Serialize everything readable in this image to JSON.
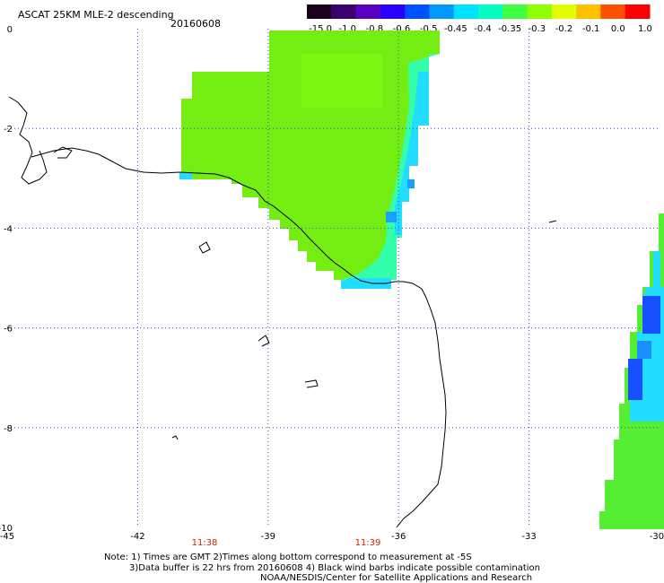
{
  "header": {
    "title": "ASCAT 25KM MLE-2 descending",
    "date": "20160608"
  },
  "colorbar": {
    "labels": [
      "-15.0",
      "-1.0",
      "-0.8",
      "-0.6",
      "-0.5",
      "-0.45",
      "-0.4",
      "-0.35",
      "-0.3",
      "-0.2",
      "-0.1",
      "0.0",
      "1.0"
    ],
    "colors": [
      "#1a001a",
      "#3a0070",
      "#5a00c0",
      "#2a00ff",
      "#0050ff",
      "#0098ff",
      "#00e0ff",
      "#00ffc0",
      "#40ff40",
      "#90ff00",
      "#e0ff00",
      "#ffc000",
      "#ff5000",
      "#ff0000"
    ]
  },
  "axes": {
    "lon_labels": [
      "-45",
      "-42",
      "-39",
      "-36",
      "-33",
      "-30"
    ],
    "lat_labels": [
      "0",
      "-2",
      "-4",
      "-6",
      "-8",
      "-10"
    ]
  },
  "times": [
    "11:38",
    "11:39"
  ],
  "notes": {
    "line1": "Note: 1) Times are GMT 2)Times along bottom correspond to measurement at -5S",
    "line2": "3)Data buffer is 22 hrs from 20160608 4) Black wind barbs indicate possible contamination",
    "line3": "NOAA/NESDIS/Center for Satellite Applications and Research"
  }
}
